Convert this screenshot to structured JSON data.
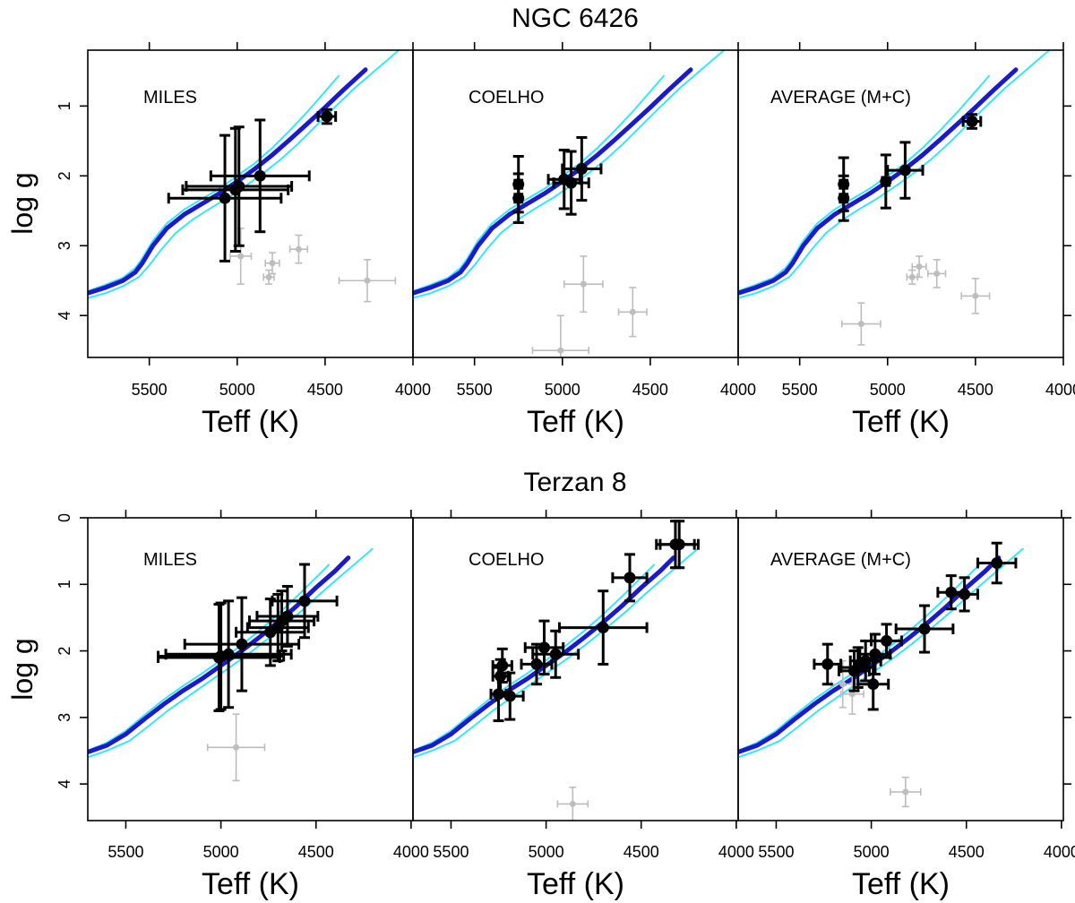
{
  "colors": {
    "iso_main": "#1a1acc",
    "iso_band": "#33e6ff",
    "star": "#000000",
    "excluded": "#bdbdbd"
  },
  "chart_data": [
    {
      "type": "scatter",
      "title": "NGC 6426",
      "xlabel": "Teff (K)",
      "ylabel": "log g",
      "xlim": [
        5850,
        4000
      ],
      "ylim": [
        4.6,
        0.2
      ],
      "x_ticks": [
        5500,
        5000,
        4500,
        4000
      ],
      "x_tick_labels": [
        "5500",
        "5000",
        "4500",
        "4000"
      ],
      "y_ticks": [
        1,
        2,
        3,
        4
      ],
      "y_tick_labels": [
        "1",
        "2",
        "3",
        "4"
      ],
      "isochrone": {
        "main": [
          [
            5850,
            3.68
          ],
          [
            5750,
            3.6
          ],
          [
            5650,
            3.5
          ],
          [
            5580,
            3.38
          ],
          [
            5540,
            3.25
          ],
          [
            5480,
            3.0
          ],
          [
            5400,
            2.75
          ],
          [
            5300,
            2.55
          ],
          [
            5200,
            2.4
          ],
          [
            5100,
            2.25
          ],
          [
            5000,
            2.08
          ],
          [
            4900,
            1.9
          ],
          [
            4800,
            1.7
          ],
          [
            4700,
            1.48
          ],
          [
            4600,
            1.25
          ],
          [
            4500,
            1.02
          ],
          [
            4400,
            0.78
          ],
          [
            4270,
            0.48
          ]
        ],
        "band_upper": [
          [
            5850,
            3.65
          ],
          [
            5750,
            3.56
          ],
          [
            5650,
            3.46
          ],
          [
            5580,
            3.32
          ],
          [
            5540,
            3.18
          ],
          [
            5480,
            2.93
          ],
          [
            5400,
            2.68
          ],
          [
            5300,
            2.48
          ],
          [
            5200,
            2.33
          ],
          [
            5100,
            2.18
          ],
          [
            5000,
            2.0
          ],
          [
            4900,
            1.82
          ],
          [
            4800,
            1.6
          ],
          [
            4700,
            1.35
          ],
          [
            4600,
            1.08
          ],
          [
            4520,
            0.85
          ],
          [
            4420,
            0.56
          ]
        ],
        "band_lower": [
          [
            5850,
            3.75
          ],
          [
            5750,
            3.68
          ],
          [
            5650,
            3.58
          ],
          [
            5560,
            3.45
          ],
          [
            5500,
            3.28
          ],
          [
            5430,
            3.05
          ],
          [
            5350,
            2.82
          ],
          [
            5250,
            2.62
          ],
          [
            5150,
            2.46
          ],
          [
            5050,
            2.31
          ],
          [
            4950,
            2.14
          ],
          [
            4850,
            1.96
          ],
          [
            4750,
            1.76
          ],
          [
            4650,
            1.53
          ],
          [
            4550,
            1.28
          ],
          [
            4450,
            1.03
          ],
          [
            4330,
            0.74
          ],
          [
            4080,
            0.2
          ]
        ]
      },
      "panels": [
        {
          "label": "MILES",
          "stars": [
            {
              "teff": 4490,
              "logg": 1.15,
              "teff_err": 50,
              "logg_err": 0.1
            },
            {
              "teff": 4870,
              "logg": 2.0,
              "teff_err": 280,
              "logg_err": 0.8
            },
            {
              "teff": 4990,
              "logg": 2.15,
              "teff_err": 300,
              "logg_err": 0.85
            },
            {
              "teff": 5010,
              "logg": 2.2,
              "teff_err": 300,
              "logg_err": 0.88
            },
            {
              "teff": 5070,
              "logg": 2.32,
              "teff_err": 320,
              "logg_err": 0.9
            }
          ],
          "excluded": [
            {
              "teff": 4650,
              "logg": 3.05,
              "teff_err": 50,
              "logg_err": 0.2
            },
            {
              "teff": 4800,
              "logg": 3.25,
              "teff_err": 40,
              "logg_err": 0.15
            },
            {
              "teff": 4820,
              "logg": 3.45,
              "teff_err": 30,
              "logg_err": 0.1
            },
            {
              "teff": 4980,
              "logg": 3.15,
              "teff_err": 60,
              "logg_err": 0.4
            },
            {
              "teff": 4260,
              "logg": 3.5,
              "teff_err": 160,
              "logg_err": 0.3
            }
          ]
        },
        {
          "label": "COELHO",
          "stars": [
            {
              "teff": 4890,
              "logg": 1.9,
              "teff_err": 110,
              "logg_err": 0.45
            },
            {
              "teff": 4950,
              "logg": 2.1,
              "teff_err": 100,
              "logg_err": 0.45
            },
            {
              "teff": 4990,
              "logg": 2.05,
              "teff_err": 90,
              "logg_err": 0.42
            },
            {
              "teff": 5250,
              "logg": 2.12,
              "teff_err": 20,
              "logg_err": 0.4
            },
            {
              "teff": 5250,
              "logg": 2.32,
              "teff_err": 20,
              "logg_err": 0.35
            }
          ],
          "excluded": [
            {
              "teff": 4880,
              "logg": 3.55,
              "teff_err": 110,
              "logg_err": 0.4
            },
            {
              "teff": 4600,
              "logg": 3.95,
              "teff_err": 80,
              "logg_err": 0.35
            },
            {
              "teff": 5010,
              "logg": 4.5,
              "teff_err": 160,
              "logg_err": 0.5
            }
          ]
        },
        {
          "label": "AVERAGE (M+C)",
          "stars": [
            {
              "teff": 4520,
              "logg": 1.22,
              "teff_err": 50,
              "logg_err": 0.1
            },
            {
              "teff": 4900,
              "logg": 1.92,
              "teff_err": 100,
              "logg_err": 0.4
            },
            {
              "teff": 5010,
              "logg": 2.08,
              "teff_err": 20,
              "logg_err": 0.38
            },
            {
              "teff": 5250,
              "logg": 2.12,
              "teff_err": 20,
              "logg_err": 0.38
            },
            {
              "teff": 5250,
              "logg": 2.32,
              "teff_err": 20,
              "logg_err": 0.32
            }
          ],
          "excluded": [
            {
              "teff": 4820,
              "logg": 3.3,
              "teff_err": 40,
              "logg_err": 0.15
            },
            {
              "teff": 4860,
              "logg": 3.45,
              "teff_err": 30,
              "logg_err": 0.1
            },
            {
              "teff": 4720,
              "logg": 3.4,
              "teff_err": 50,
              "logg_err": 0.2
            },
            {
              "teff": 4500,
              "logg": 3.72,
              "teff_err": 80,
              "logg_err": 0.25
            },
            {
              "teff": 5150,
              "logg": 4.12,
              "teff_err": 110,
              "logg_err": 0.3
            }
          ]
        }
      ]
    },
    {
      "type": "scatter",
      "title": "Terzan 8",
      "xlabel": "Teff (K)",
      "ylabel": "log g",
      "xlim": [
        5700,
        3990
      ],
      "ylim": [
        4.55,
        0.0
      ],
      "x_ticks": [
        5500,
        5000,
        4500,
        4000
      ],
      "x_tick_labels": [
        "5500",
        "5000",
        "4500",
        "4000"
      ],
      "y_ticks": [
        0,
        1,
        2,
        3,
        4
      ],
      "y_tick_labels": [
        "0",
        "1",
        "2",
        "3",
        "4"
      ],
      "isochrone": {
        "main": [
          [
            5700,
            3.52
          ],
          [
            5600,
            3.42
          ],
          [
            5500,
            3.25
          ],
          [
            5400,
            3.02
          ],
          [
            5300,
            2.8
          ],
          [
            5200,
            2.6
          ],
          [
            5100,
            2.42
          ],
          [
            5000,
            2.22
          ],
          [
            4900,
            2.02
          ],
          [
            4800,
            1.8
          ],
          [
            4700,
            1.57
          ],
          [
            4600,
            1.32
          ],
          [
            4500,
            1.05
          ],
          [
            4400,
            0.8
          ],
          [
            4330,
            0.6
          ]
        ],
        "band_upper": [
          [
            5700,
            3.5
          ],
          [
            5600,
            3.38
          ],
          [
            5500,
            3.2
          ],
          [
            5400,
            2.96
          ],
          [
            5300,
            2.73
          ],
          [
            5200,
            2.53
          ],
          [
            5100,
            2.34
          ],
          [
            5000,
            2.14
          ],
          [
            4900,
            1.93
          ],
          [
            4800,
            1.7
          ],
          [
            4700,
            1.45
          ],
          [
            4600,
            1.18
          ],
          [
            4500,
            0.9
          ],
          [
            4430,
            0.7
          ]
        ],
        "band_lower": [
          [
            5700,
            3.6
          ],
          [
            5600,
            3.5
          ],
          [
            5480,
            3.35
          ],
          [
            5380,
            3.13
          ],
          [
            5280,
            2.9
          ],
          [
            5180,
            2.7
          ],
          [
            5080,
            2.5
          ],
          [
            4980,
            2.3
          ],
          [
            4880,
            2.1
          ],
          [
            4780,
            1.88
          ],
          [
            4680,
            1.65
          ],
          [
            4580,
            1.41
          ],
          [
            4480,
            1.15
          ],
          [
            4380,
            0.9
          ],
          [
            4200,
            0.46
          ]
        ]
      },
      "panels": [
        {
          "label": "MILES",
          "stars": [
            {
              "teff": 4560,
              "logg": 1.25,
              "teff_err": 170,
              "logg_err": 0.55
            },
            {
              "teff": 4650,
              "logg": 1.48,
              "teff_err": 160,
              "logg_err": 0.45
            },
            {
              "teff": 4680,
              "logg": 1.55,
              "teff_err": 170,
              "logg_err": 0.45
            },
            {
              "teff": 4700,
              "logg": 1.65,
              "teff_err": 160,
              "logg_err": 0.5
            },
            {
              "teff": 4740,
              "logg": 1.72,
              "teff_err": 180,
              "logg_err": 0.5
            },
            {
              "teff": 4890,
              "logg": 1.9,
              "teff_err": 300,
              "logg_err": 0.7
            },
            {
              "teff": 4960,
              "logg": 2.05,
              "teff_err": 330,
              "logg_err": 0.8
            },
            {
              "teff": 5000,
              "logg": 2.08,
              "teff_err": 330,
              "logg_err": 0.8
            },
            {
              "teff": 5010,
              "logg": 2.1,
              "teff_err": 320,
              "logg_err": 0.8
            }
          ],
          "excluded": [
            {
              "teff": 4920,
              "logg": 3.45,
              "teff_err": 150,
              "logg_err": 0.5
            }
          ]
        },
        {
          "label": "COELHO",
          "stars": [
            {
              "teff": 4300,
              "logg": 0.4,
              "teff_err": 100,
              "logg_err": 0.35
            },
            {
              "teff": 4320,
              "logg": 0.4,
              "teff_err": 100,
              "logg_err": 0.35
            },
            {
              "teff": 4560,
              "logg": 0.9,
              "teff_err": 90,
              "logg_err": 0.35
            },
            {
              "teff": 4700,
              "logg": 1.65,
              "teff_err": 230,
              "logg_err": 0.55
            },
            {
              "teff": 4950,
              "logg": 2.05,
              "teff_err": 120,
              "logg_err": 0.35
            },
            {
              "teff": 5010,
              "logg": 1.95,
              "teff_err": 100,
              "logg_err": 0.4
            },
            {
              "teff": 5050,
              "logg": 2.2,
              "teff_err": 80,
              "logg_err": 0.3
            },
            {
              "teff": 5190,
              "logg": 2.68,
              "teff_err": 70,
              "logg_err": 0.35
            },
            {
              "teff": 5230,
              "logg": 2.22,
              "teff_err": 50,
              "logg_err": 0.25
            },
            {
              "teff": 5240,
              "logg": 2.38,
              "teff_err": 40,
              "logg_err": 0.25
            },
            {
              "teff": 5250,
              "logg": 2.65,
              "teff_err": 40,
              "logg_err": 0.4
            }
          ],
          "excluded": [
            {
              "teff": 4860,
              "logg": 4.3,
              "teff_err": 80,
              "logg_err": 0.25
            }
          ]
        },
        {
          "label": "AVERAGE (M+C)",
          "stars": [
            {
              "teff": 4340,
              "logg": 0.68,
              "teff_err": 100,
              "logg_err": 0.3
            },
            {
              "teff": 4510,
              "logg": 1.15,
              "teff_err": 70,
              "logg_err": 0.25
            },
            {
              "teff": 4580,
              "logg": 1.12,
              "teff_err": 70,
              "logg_err": 0.25
            },
            {
              "teff": 4720,
              "logg": 1.67,
              "teff_err": 150,
              "logg_err": 0.35
            },
            {
              "teff": 4920,
              "logg": 1.85,
              "teff_err": 80,
              "logg_err": 0.25
            },
            {
              "teff": 4980,
              "logg": 2.05,
              "teff_err": 80,
              "logg_err": 0.3
            },
            {
              "teff": 4990,
              "logg": 2.5,
              "teff_err": 80,
              "logg_err": 0.38
            },
            {
              "teff": 5030,
              "logg": 2.15,
              "teff_err": 80,
              "logg_err": 0.3
            },
            {
              "teff": 5070,
              "logg": 2.25,
              "teff_err": 90,
              "logg_err": 0.3
            },
            {
              "teff": 5090,
              "logg": 2.3,
              "teff_err": 80,
              "logg_err": 0.3
            },
            {
              "teff": 5230,
              "logg": 2.2,
              "teff_err": 70,
              "logg_err": 0.3
            }
          ],
          "excluded": [
            {
              "teff": 5150,
              "logg": 2.5,
              "teff_err": 60,
              "logg_err": 0.35
            },
            {
              "teff": 5100,
              "logg": 2.65,
              "teff_err": 60,
              "logg_err": 0.3
            },
            {
              "teff": 4820,
              "logg": 4.12,
              "teff_err": 80,
              "logg_err": 0.22
            }
          ]
        }
      ]
    }
  ]
}
